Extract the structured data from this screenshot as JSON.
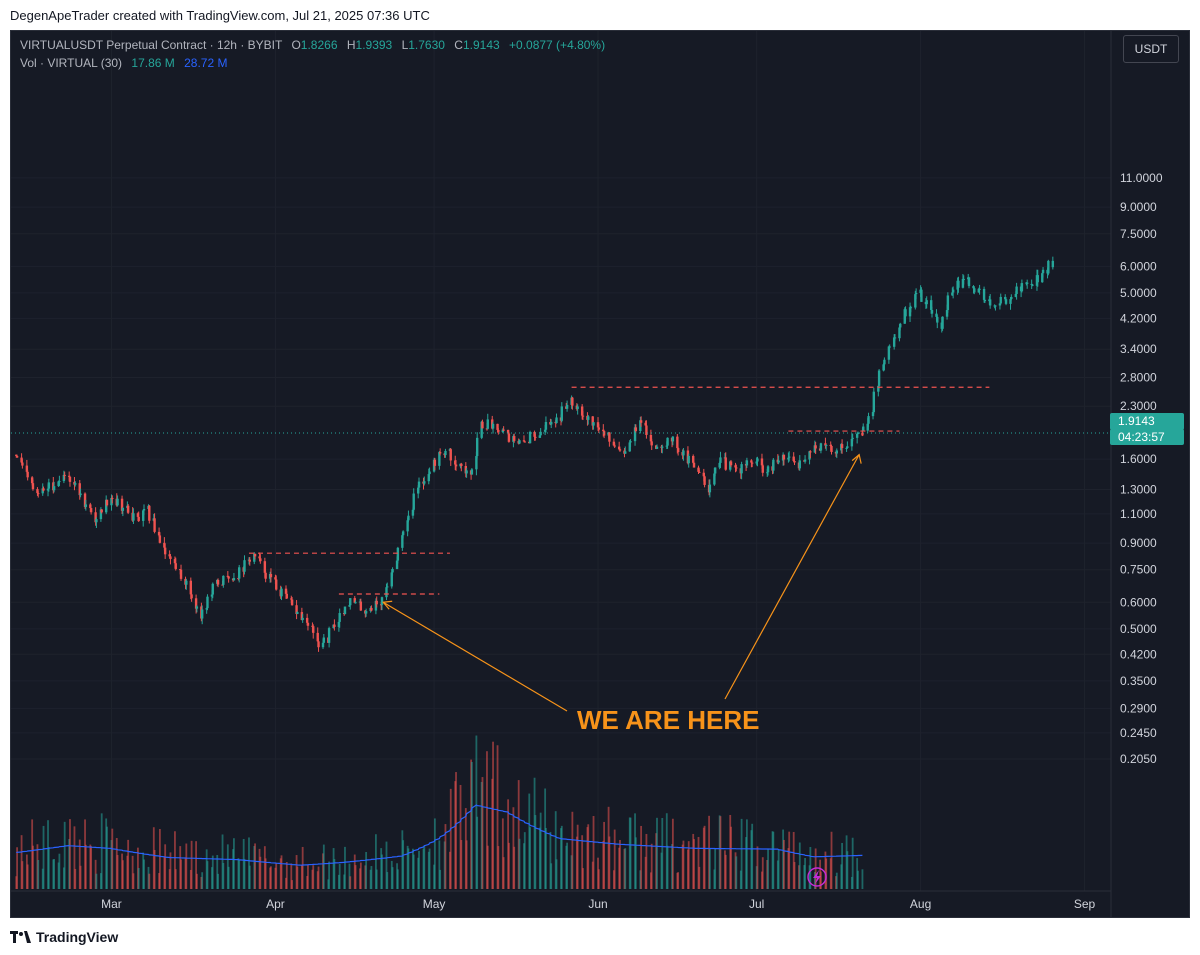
{
  "header": {
    "attribution": "DegenApeTrader created with TradingView.com, Jul 21, 2025 07:36 UTC"
  },
  "legend": {
    "symbol": "VIRTUALUSDT Perpetual Contract · 12h · BYBIT",
    "open_label": "O",
    "open": "1.8266",
    "high_label": "H",
    "high": "1.9393",
    "low_label": "L",
    "low": "1.7630",
    "close_label": "C",
    "close": "1.9143",
    "change": "+0.0877 (+4.80%)",
    "volume_label": "Vol · VIRTUAL (30)",
    "volume_value": "17.86 M",
    "volume_ma": "28.72 M"
  },
  "currency_button": "USDT",
  "price_tag": {
    "price": "1.9143",
    "countdown": "04:23:57"
  },
  "annotation": {
    "text": "WE ARE HERE"
  },
  "footer": {
    "brand": "TradingView"
  },
  "colors": {
    "background": "#161a25",
    "up": "#26a69a",
    "down": "#ef5350",
    "volume_ma": "#2962ff",
    "annotation": "#f7931a",
    "level_line": "#ef5350"
  },
  "chart_data": {
    "type": "candlestick",
    "scale": "log",
    "y_ticks": [
      11.0,
      9.0,
      7.5,
      6.0,
      5.0,
      4.2,
      3.4,
      2.8,
      2.3,
      1.6,
      1.3,
      1.1,
      0.9,
      0.75,
      0.6,
      0.5,
      0.42,
      0.35,
      0.29,
      0.245,
      0.205
    ],
    "y_tick_labels": [
      "11.0000",
      "9.0000",
      "7.5000",
      "6.0000",
      "5.0000",
      "4.2000",
      "3.4000",
      "2.8000",
      "2.3000",
      "1.6000",
      "1.3000",
      "1.1000",
      "0.9000",
      "0.7500",
      "0.6000",
      "0.5000",
      "0.4200",
      "0.3500",
      "0.2900",
      "0.2450",
      "0.2050"
    ],
    "x_tick_labels": [
      "Mar",
      "Apr",
      "May",
      "Jun",
      "Jul",
      "Aug",
      "Sep"
    ],
    "x_tick_dates": [
      "2025-03-01",
      "2025-04-01",
      "2025-05-01",
      "2025-06-01",
      "2025-07-01",
      "2025-08-01",
      "2025-09-01"
    ],
    "price_path": [
      [
        "2025-02-11",
        1.65
      ],
      [
        "2025-02-15",
        1.25
      ],
      [
        "2025-02-21",
        1.45
      ],
      [
        "2025-02-26",
        1.05
      ],
      [
        "2025-03-01",
        1.25
      ],
      [
        "2025-03-06",
        1.05
      ],
      [
        "2025-03-08",
        1.12
      ],
      [
        "2025-03-12",
        0.82
      ],
      [
        "2025-03-15",
        0.7
      ],
      [
        "2025-03-18",
        0.55
      ],
      [
        "2025-03-21",
        0.68
      ],
      [
        "2025-03-25",
        0.73
      ],
      [
        "2025-03-28",
        0.83
      ],
      [
        "2025-04-01",
        0.68
      ],
      [
        "2025-04-04",
        0.59
      ],
      [
        "2025-04-07",
        0.52
      ],
      [
        "2025-04-10",
        0.44
      ],
      [
        "2025-04-12",
        0.5
      ],
      [
        "2025-04-15",
        0.61
      ],
      [
        "2025-04-18",
        0.57
      ],
      [
        "2025-04-21",
        0.6
      ],
      [
        "2025-04-23",
        0.72
      ],
      [
        "2025-04-25",
        0.95
      ],
      [
        "2025-04-28",
        1.3
      ],
      [
        "2025-05-01",
        1.55
      ],
      [
        "2025-05-03",
        1.7
      ],
      [
        "2025-05-06",
        1.55
      ],
      [
        "2025-05-08",
        1.4
      ],
      [
        "2025-05-10",
        2.05
      ],
      [
        "2025-05-14",
        2.0
      ],
      [
        "2025-05-17",
        1.75
      ],
      [
        "2025-05-22",
        2.0
      ],
      [
        "2025-05-25",
        2.15
      ],
      [
        "2025-05-27",
        2.45
      ],
      [
        "2025-05-30",
        2.15
      ],
      [
        "2025-06-03",
        1.85
      ],
      [
        "2025-06-06",
        1.7
      ],
      [
        "2025-06-09",
        2.05
      ],
      [
        "2025-06-12",
        1.75
      ],
      [
        "2025-06-15",
        1.85
      ],
      [
        "2025-06-18",
        1.6
      ],
      [
        "2025-06-21",
        1.45
      ],
      [
        "2025-06-22",
        1.32
      ],
      [
        "2025-06-24",
        1.6
      ],
      [
        "2025-06-27",
        1.48
      ],
      [
        "2025-07-01",
        1.58
      ],
      [
        "2025-07-03",
        1.45
      ],
      [
        "2025-07-06",
        1.62
      ],
      [
        "2025-07-09",
        1.55
      ],
      [
        "2025-07-12",
        1.75
      ],
      [
        "2025-07-16",
        1.7
      ],
      [
        "2025-07-19",
        1.82
      ],
      [
        "2025-07-21",
        1.91
      ]
    ],
    "projection_path": [
      [
        "2025-07-21",
        1.91
      ],
      [
        "2025-07-23",
        2.3
      ],
      [
        "2025-07-25",
        3.1
      ],
      [
        "2025-07-27",
        3.6
      ],
      [
        "2025-07-29",
        4.3
      ],
      [
        "2025-07-31",
        4.8
      ],
      [
        "2025-08-01",
        5.0
      ],
      [
        "2025-08-03",
        4.5
      ],
      [
        "2025-08-05",
        3.9
      ],
      [
        "2025-08-07",
        5.2
      ],
      [
        "2025-08-10",
        5.4
      ],
      [
        "2025-08-13",
        4.9
      ],
      [
        "2025-08-15",
        4.5
      ],
      [
        "2025-08-18",
        4.9
      ],
      [
        "2025-08-21",
        5.3
      ],
      [
        "2025-08-24",
        5.6
      ],
      [
        "2025-08-26",
        6.2
      ]
    ],
    "levels": [
      {
        "price": 0.84,
        "from": "2025-03-27",
        "to": "2025-05-04"
      },
      {
        "price": 0.635,
        "from": "2025-04-13",
        "to": "2025-05-02"
      },
      {
        "price": 2.62,
        "from": "2025-05-27",
        "to": "2025-08-14"
      },
      {
        "price": 1.94,
        "from": "2025-07-07",
        "to": "2025-07-28"
      }
    ],
    "annotation_targets": [
      {
        "date": "2025-04-21",
        "price": 0.6
      },
      {
        "date": "2025-07-20",
        "price": 1.72
      }
    ],
    "volume_ma": [
      [
        "2025-02-11",
        0.52
      ],
      [
        "2025-02-21",
        0.62
      ],
      [
        "2025-03-01",
        0.58
      ],
      [
        "2025-03-12",
        0.45
      ],
      [
        "2025-03-25",
        0.42
      ],
      [
        "2025-04-06",
        0.34
      ],
      [
        "2025-04-14",
        0.38
      ],
      [
        "2025-04-25",
        0.47
      ],
      [
        "2025-05-02",
        0.72
      ],
      [
        "2025-05-09",
        1.2
      ],
      [
        "2025-05-15",
        1.1
      ],
      [
        "2025-05-25",
        0.72
      ],
      [
        "2025-06-05",
        0.64
      ],
      [
        "2025-06-20",
        0.58
      ],
      [
        "2025-07-05",
        0.57
      ],
      [
        "2025-07-12",
        0.46
      ],
      [
        "2025-07-21",
        0.48
      ]
    ]
  }
}
